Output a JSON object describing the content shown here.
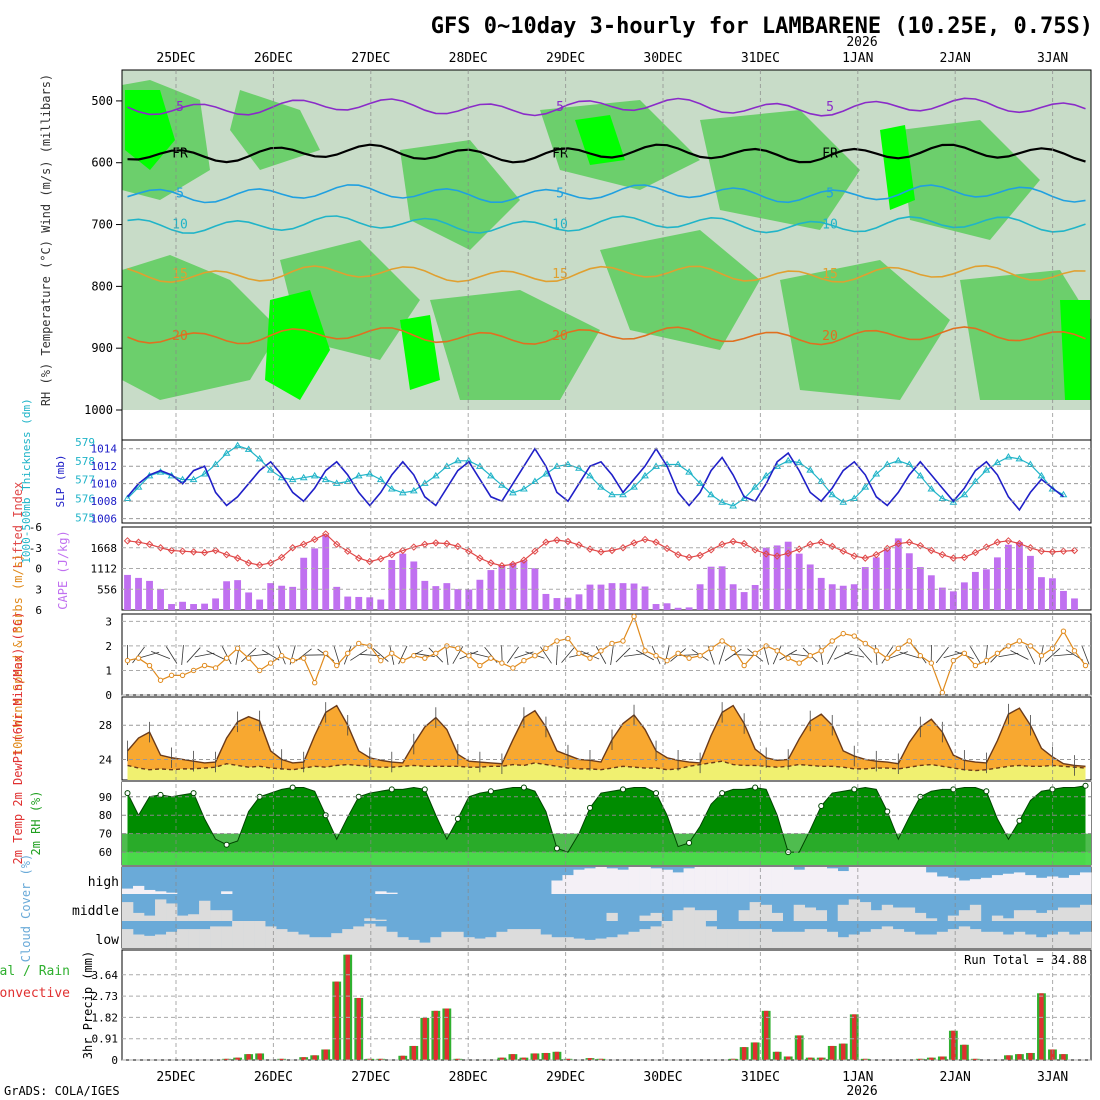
{
  "title": "GFS 0~10day 3-hourly for LAMBARENE (10.25E, 0.75S)",
  "year_label": "2026",
  "credit": "GrADS: COLA/IGES",
  "colors": {
    "rh_light": "#c8dcc8",
    "rh_mid": "#5ccc5c",
    "rh_bright": "#00ff00",
    "slp": "#2020c8",
    "thickness": "#20b4c8",
    "cape": "#c070f0",
    "lifted": "#e04848",
    "wind": "#e08a1c",
    "temp_fill": "#f8a830",
    "temp_top": "#f06010",
    "dew_fill": "#f0f070",
    "rh_dark": "#008c00",
    "cloud_blue": "#6aaad8",
    "cloud_gray": "#dcdcdc",
    "precip_green": "#30b030",
    "precip_red": "#e03030"
  },
  "chart_data": [
    {
      "panel": "upper_air",
      "type": "heatmap",
      "ylabel": "RH (%)  Temperature (°C) Wind (m/s)   (millibars)",
      "y_ticks": [
        "500",
        "600",
        "700",
        "800",
        "900",
        "1000"
      ],
      "ylim": [
        1000,
        450
      ],
      "isotherms": [
        {
          "label": "5",
          "pressure": 510,
          "color": "#8a2bc8"
        },
        {
          "label": "FR",
          "pressure": 585,
          "color": "#000000"
        },
        {
          "label": "5",
          "pressure": 650,
          "color": "#20a0e0"
        },
        {
          "label": "10",
          "pressure": 700,
          "color": "#20b4c8"
        },
        {
          "label": "15",
          "pressure": 780,
          "color": "#e0a030"
        },
        {
          "label": "20",
          "pressure": 880,
          "color": "#e07020"
        }
      ]
    },
    {
      "panel": "slp_thickness",
      "type": "line",
      "ylabel_left": "1000-500mb Thickness (dm)",
      "ylabel_right": "SLP (mb)",
      "left_ticks": [
        "579",
        "578",
        "577",
        "576",
        "575"
      ],
      "right_ticks": [
        "1014",
        "1012",
        "1010",
        "1008",
        "1006"
      ],
      "series": [
        {
          "name": "SLP (mb)",
          "ylim": [
            1005.5,
            1015
          ],
          "values": [
            1008.5,
            1010.0,
            1011.0,
            1011.5,
            1011.0,
            1010.0,
            1011.5,
            1012.0,
            1009.0,
            1007.5,
            1008.5,
            1010.0,
            1011.5,
            1012.5,
            1011.0,
            1009.0,
            1008.0,
            1009.5,
            1011.5,
            1012.5,
            1011.0,
            1009.0,
            1007.5,
            1009.0,
            1011.0,
            1012.5,
            1011.0,
            1008.5,
            1007.5,
            1009.5,
            1011.5,
            1012.5,
            1010.5,
            1008.5,
            1008.0,
            1010.0,
            1012.0,
            1014.0,
            1012.0,
            1009.0,
            1008.0,
            1010.0,
            1012.0,
            1012.5,
            1011.0,
            1009.0,
            1010.5,
            1012.0,
            1014.0,
            1012.0,
            1009.0,
            1007.5,
            1009.0,
            1011.5,
            1013.0,
            1011.0,
            1008.5,
            1008.0,
            1010.0,
            1012.5,
            1013.5,
            1011.5,
            1009.0,
            1008.0,
            1009.5,
            1011.5,
            1012.5,
            1011.0,
            1008.5,
            1007.5,
            1009.0,
            1011.0,
            1012.5,
            1011.0,
            1009.5,
            1008.0,
            1009.5,
            1011.5,
            1012.5,
            1011.0,
            1008.5,
            1007.0,
            1009.0,
            1010.5,
            1009.5,
            1008.5
          ]
        },
        {
          "name": "Thickness (dm)",
          "ylim": [
            574.7,
            579.1
          ],
          "values": [
            576.0,
            576.6,
            577.2,
            577.4,
            577.2,
            577.0,
            577.0,
            577.3,
            577.8,
            578.4,
            578.8,
            578.6,
            578.1,
            577.5,
            577.1,
            577.0,
            577.1,
            577.2,
            577.0,
            576.8,
            576.9,
            577.2,
            577.3,
            577.0,
            576.5,
            576.3,
            576.4,
            576.8,
            577.2,
            577.7,
            578.0,
            578.0,
            577.7,
            577.2,
            576.7,
            576.3,
            576.5,
            576.9,
            577.3,
            577.7,
            577.8,
            577.6,
            577.2,
            576.6,
            576.2,
            576.2,
            576.6,
            577.2,
            577.7,
            577.8,
            577.8,
            577.4,
            576.8,
            576.2,
            575.8,
            575.6,
            576.0,
            576.6,
            577.2,
            577.7,
            578.0,
            577.9,
            577.5,
            576.9,
            576.2,
            575.8,
            576.0,
            576.6,
            577.3,
            577.8,
            578.0,
            577.8,
            577.2,
            576.5,
            576.0,
            575.8,
            576.2,
            576.9,
            577.5,
            577.9,
            578.2,
            578.1,
            577.8,
            577.2,
            576.5,
            576.2
          ]
        }
      ]
    },
    {
      "panel": "cape_li",
      "type": "bar",
      "ylabel_left": "Lifted Index",
      "ylabel_right": "CAPE (J/kg)",
      "left_ticks": [
        "-6",
        "-3",
        "0",
        "3",
        "6"
      ],
      "right_ticks": [
        "1668",
        "1112",
        "556"
      ],
      "cape_ylim": [
        0,
        2224
      ],
      "li_ylim": [
        -6,
        6
      ],
      "cape_values": [
        940,
        860,
        780,
        560,
        160,
        220,
        160,
        170,
        310,
        770,
        800,
        470,
        280,
        720,
        650,
        620,
        1400,
        1650,
        2010,
        620,
        360,
        350,
        340,
        280,
        1340,
        1510,
        1300,
        780,
        640,
        720,
        560,
        550,
        810,
        1070,
        1180,
        1260,
        1330,
        1120,
        430,
        320,
        330,
        420,
        680,
        680,
        720,
        720,
        710,
        630,
        160,
        180,
        60,
        70,
        690,
        1160,
        1170,
        690,
        480,
        670,
        1670,
        1730,
        1830,
        1510,
        1220,
        860,
        690,
        650,
        690,
        1150,
        1410,
        1620,
        1920,
        1520,
        1150,
        930,
        600,
        500,
        740,
        1020,
        1090,
        1410,
        1750,
        1820,
        1450,
        880,
        850,
        510,
        310
      ],
      "li_values": [
        -4.0,
        -3.8,
        -3.5,
        -3.0,
        -2.6,
        -2.5,
        -2.4,
        -2.3,
        -2.6,
        -2.0,
        -1.5,
        -0.8,
        -0.5,
        -0.8,
        -1.6,
        -3.0,
        -3.5,
        -4.2,
        -5.0,
        -3.5,
        -2.5,
        -1.5,
        -1.0,
        -1.4,
        -2.0,
        -2.6,
        -3.1,
        -3.5,
        -3.7,
        -3.6,
        -3.2,
        -2.5,
        -1.5,
        -0.8,
        -0.4,
        -0.6,
        -1.2,
        -2.5,
        -3.8,
        -4.1,
        -3.9,
        -3.4,
        -2.8,
        -2.4,
        -2.6,
        -3.0,
        -3.7,
        -4.2,
        -3.8,
        -2.9,
        -2.0,
        -1.6,
        -1.9,
        -2.7,
        -3.5,
        -3.9,
        -3.6,
        -2.7,
        -2.1,
        -1.8,
        -2.2,
        -2.8,
        -3.5,
        -3.8,
        -3.2,
        -2.5,
        -1.8,
        -1.5,
        -2.0,
        -2.9,
        -3.6,
        -3.8,
        -3.3,
        -2.6,
        -2.0,
        -1.5,
        -1.6,
        -2.3,
        -3.1,
        -3.8,
        -4.0,
        -3.6,
        -3.0,
        -2.5,
        -2.4,
        -2.5,
        -2.6
      ]
    },
    {
      "panel": "wind10m",
      "type": "line",
      "ylabel": "10m Wind Speed & Barbs (m/s)",
      "y_ticks": [
        "3",
        "2",
        "1",
        "0"
      ],
      "ylim": [
        0,
        3.3
      ],
      "values": [
        1.4,
        1.5,
        1.2,
        0.6,
        0.8,
        0.8,
        1.0,
        1.2,
        1.1,
        1.5,
        1.9,
        1.5,
        1.0,
        1.3,
        1.6,
        1.4,
        1.5,
        0.5,
        1.7,
        1.2,
        1.7,
        2.1,
        2.0,
        1.4,
        1.7,
        1.4,
        1.6,
        1.5,
        1.7,
        2.0,
        1.9,
        1.6,
        1.2,
        1.5,
        1.3,
        1.1,
        1.4,
        1.6,
        1.9,
        2.2,
        2.3,
        1.7,
        1.5,
        1.8,
        2.1,
        2.2,
        3.2,
        1.8,
        1.6,
        1.4,
        1.7,
        1.5,
        1.6,
        1.9,
        2.2,
        1.9,
        1.2,
        1.7,
        2.0,
        1.8,
        1.5,
        1.3,
        1.6,
        1.8,
        2.2,
        2.5,
        2.4,
        2.1,
        1.8,
        1.5,
        1.9,
        2.2,
        1.6,
        1.3,
        0.1,
        1.4,
        1.7,
        1.2,
        1.4,
        1.7,
        2.0,
        2.2,
        2.0,
        1.6,
        1.9,
        2.6,
        1.8,
        1.2
      ]
    },
    {
      "panel": "temp2m",
      "type": "area",
      "ylabel": "2m Temp 2m DewPt (6hr Min/Max) (°C)",
      "y_ticks": [
        "28",
        "24"
      ],
      "ylim": [
        21.6,
        31.3
      ],
      "temp_values": [
        25.0,
        26.5,
        27.2,
        24.5,
        24.2,
        24.0,
        23.8,
        23.6,
        23.7,
        26.5,
        28.4,
        29.0,
        28.5,
        25.0,
        24.0,
        23.6,
        23.7,
        26.8,
        29.5,
        30.3,
        28.0,
        25.0,
        24.2,
        23.9,
        23.7,
        23.6,
        25.8,
        27.8,
        28.9,
        27.5,
        24.6,
        23.8,
        23.7,
        23.6,
        23.5,
        26.3,
        28.9,
        29.7,
        27.8,
        25.0,
        24.5,
        24.0,
        23.9,
        23.7,
        26.3,
        28.2,
        29.2,
        27.5,
        25.0,
        24.2,
        23.9,
        23.7,
        23.6,
        26.8,
        29.5,
        30.3,
        28.2,
        25.2,
        24.2,
        23.9,
        24.0,
        26.4,
        28.5,
        29.3,
        28.0,
        25.0,
        24.4,
        24.0,
        23.8,
        23.7,
        23.5,
        26.0,
        27.8,
        28.7,
        27.2,
        24.5,
        23.9,
        23.7,
        23.6,
        26.2,
        29.3,
        30.0,
        28.0,
        25.3,
        24.3,
        23.5,
        23.3,
        23.2
      ],
      "dew_values": [
        23.3,
        23.0,
        22.8,
        22.9,
        22.8,
        22.9,
        22.9,
        23.0,
        23.1,
        23.5,
        23.3,
        23.1,
        23.2,
        23.0,
        22.9,
        22.8,
        23.0,
        23.2,
        23.1,
        23.3,
        23.4,
        23.3,
        23.2,
        23.1,
        23.1,
        23.2,
        23.3,
        23.2,
        23.2,
        23.2,
        23.2,
        23.1,
        23.1,
        23.2,
        23.2,
        23.4,
        23.3,
        23.6,
        23.4,
        23.2,
        23.0,
        22.9,
        22.9,
        22.8,
        23.0,
        23.2,
        23.1,
        23.0,
        23.0,
        22.8,
        22.9,
        23.2,
        23.4,
        23.6,
        23.8,
        23.4,
        23.3,
        23.3,
        23.2,
        23.1,
        23.2,
        23.4,
        23.3,
        23.2,
        23.2,
        23.1,
        22.9,
        22.9,
        23.0,
        23.0,
        22.9,
        23.1,
        23.3,
        23.4,
        23.2,
        23.0,
        22.8,
        22.7,
        22.8,
        23.0,
        23.2,
        23.3,
        23.2,
        23.2,
        23.3,
        23.2,
        23.1,
        23.0
      ]
    },
    {
      "panel": "rh2m",
      "type": "area",
      "ylabel": "2m RH (%)",
      "y_ticks": [
        "90",
        "80",
        "70",
        "60"
      ],
      "ylim": [
        53,
        98
      ],
      "values": [
        92,
        80,
        90,
        91,
        90,
        91,
        92,
        78,
        67,
        64,
        66,
        82,
        90,
        92,
        94,
        95,
        95,
        93,
        80,
        67,
        79,
        90,
        92,
        93,
        94,
        94,
        95,
        94,
        80,
        67,
        78,
        90,
        92,
        93,
        94,
        95,
        95,
        93,
        82,
        62,
        60,
        70,
        84,
        92,
        93,
        94,
        95,
        95,
        92,
        80,
        63,
        65,
        74,
        86,
        92,
        94,
        94,
        95,
        94,
        80,
        60,
        60,
        72,
        85,
        92,
        93,
        94,
        95,
        94,
        82,
        67,
        79,
        90,
        93,
        94,
        94,
        95,
        95,
        93,
        78,
        67,
        77,
        88,
        93,
        94,
        95,
        95,
        96
      ]
    },
    {
      "panel": "cloud",
      "type": "area",
      "ylabel": "Cloud Cover (%)",
      "levels": [
        "high",
        "middle",
        "low"
      ],
      "high_values": [
        80,
        70,
        85,
        90,
        95,
        100,
        100,
        100,
        100,
        90,
        100,
        100,
        100,
        100,
        100,
        100,
        100,
        100,
        100,
        100,
        100,
        100,
        100,
        90,
        95,
        100,
        100,
        100,
        100,
        100,
        100,
        100,
        100,
        100,
        100,
        100,
        100,
        100,
        100,
        50,
        30,
        10,
        5,
        0,
        5,
        10,
        0,
        0,
        5,
        10,
        20,
        5,
        0,
        0,
        0,
        0,
        0,
        0,
        0,
        0,
        0,
        10,
        0,
        0,
        5,
        15,
        0,
        0,
        0,
        0,
        0,
        0,
        0,
        20,
        35,
        40,
        50,
        45,
        40,
        30,
        25,
        20,
        30,
        40,
        35,
        40,
        30,
        20
      ],
      "middle_values": [
        30,
        70,
        80,
        20,
        35,
        80,
        75,
        25,
        60,
        60,
        100,
        100,
        100,
        100,
        100,
        100,
        100,
        100,
        100,
        100,
        100,
        100,
        90,
        95,
        100,
        100,
        100,
        100,
        100,
        100,
        100,
        100,
        100,
        100,
        100,
        100,
        100,
        100,
        100,
        100,
        100,
        100,
        100,
        100,
        70,
        100,
        100,
        80,
        70,
        100,
        60,
        50,
        60,
        60,
        100,
        100,
        60,
        30,
        40,
        70,
        100,
        40,
        50,
        60,
        100,
        40,
        20,
        30,
        60,
        40,
        50,
        50,
        70,
        90,
        100,
        80,
        60,
        40,
        100,
        80,
        90,
        60,
        60,
        70,
        60,
        50,
        50,
        40
      ],
      "low_values": [
        30,
        50,
        55,
        50,
        40,
        30,
        30,
        30,
        20,
        20,
        0,
        0,
        0,
        20,
        30,
        40,
        50,
        60,
        60,
        45,
        30,
        20,
        10,
        20,
        40,
        60,
        70,
        80,
        60,
        40,
        40,
        60,
        65,
        60,
        40,
        30,
        30,
        30,
        50,
        60,
        60,
        65,
        70,
        65,
        60,
        50,
        40,
        30,
        20,
        0,
        0,
        0,
        0,
        20,
        30,
        30,
        30,
        30,
        30,
        40,
        40,
        40,
        30,
        30,
        40,
        60,
        50,
        40,
        30,
        20,
        30,
        40,
        50,
        50,
        40,
        30,
        20,
        30,
        40,
        40,
        50,
        40,
        50,
        60,
        50,
        40,
        50,
        40
      ]
    },
    {
      "panel": "precip",
      "type": "bar",
      "ylabel": "3hr Precip (mm)",
      "legend_total": "Total / Rain",
      "legend_conv": "Convective",
      "run_total": "Run Total = 34.88",
      "y_ticks": [
        "3.64",
        "2.73",
        "1.82",
        "0.91",
        "0"
      ],
      "ylim": [
        0,
        4.7
      ],
      "values": [
        0,
        0,
        0,
        0,
        0,
        0,
        0,
        0,
        0,
        0.05,
        0.1,
        0.25,
        0.28,
        0,
        0.05,
        0,
        0.12,
        0.2,
        0.45,
        3.35,
        4.5,
        2.65,
        0.05,
        0.05,
        0,
        0.18,
        0.6,
        1.8,
        2.1,
        2.2,
        0.05,
        0,
        0,
        0,
        0.1,
        0.25,
        0.1,
        0.28,
        0.3,
        0.35,
        0.05,
        0,
        0.08,
        0.05,
        0,
        0,
        0,
        0,
        0,
        0,
        0,
        0,
        0,
        0,
        0,
        0.05,
        0.55,
        0.75,
        2.1,
        0.35,
        0.15,
        1.05,
        0.1,
        0.1,
        0.6,
        0.7,
        1.95,
        0.05,
        0,
        0,
        0,
        0,
        0.05,
        0.1,
        0.15,
        1.25,
        0.65,
        0.05,
        0,
        0,
        0.2,
        0.25,
        0.3,
        2.85,
        0.45,
        0.25,
        0
      ]
    },
    {
      "panel": "time_axis",
      "day_labels": [
        "25DEC",
        "26DEC",
        "27DEC",
        "28DEC",
        "29DEC",
        "30DEC",
        "31DEC",
        "1JAN",
        "2JAN",
        "3JAN"
      ]
    }
  ]
}
